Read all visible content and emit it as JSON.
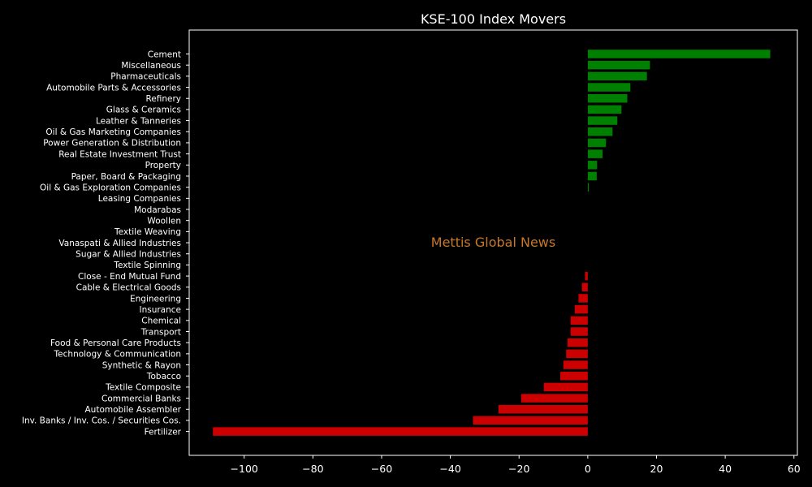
{
  "chart_data": {
    "type": "bar",
    "orientation": "horizontal",
    "title": "KSE-100 Index Movers",
    "watermark": "Mettis Global News",
    "xlabel": "",
    "ylabel": "",
    "xlim": [
      -116,
      61
    ],
    "xticks": [
      -100,
      -80,
      -60,
      -40,
      -20,
      0,
      20,
      40,
      60
    ],
    "xtick_labels": [
      "−100",
      "−80",
      "−60",
      "−40",
      "−20",
      "0",
      "20",
      "40",
      "60"
    ],
    "grid": false,
    "categories": [
      "Cement",
      "Miscellaneous",
      "Pharmaceuticals",
      "Automobile Parts & Accessories",
      "Refinery",
      "Glass & Ceramics",
      "Leather & Tanneries",
      "Oil & Gas Marketing Companies",
      "Power Generation & Distribution",
      "Real Estate Investment Trust",
      "Property",
      "Paper, Board & Packaging",
      "Oil & Gas Exploration Companies",
      "Leasing Companies",
      "Modarabas",
      "Woollen",
      "Textile Weaving",
      "Vanaspati & Allied Industries",
      "Sugar & Allied Industries",
      "Textile Spinning",
      "Close - End Mutual Fund",
      "Cable & Electrical Goods",
      "Engineering",
      "Insurance",
      "Chemical",
      "Transport",
      "Food & Personal Care Products",
      "Technology & Communication",
      "Synthetic & Rayon",
      "Tobacco",
      "Textile Composite",
      "Commercial Banks",
      "Automobile Assembler",
      "Inv. Banks / Inv. Cos. / Securities Cos.",
      "Fertilizer"
    ],
    "values": [
      53.1,
      18.1,
      17.2,
      12.4,
      11.5,
      9.8,
      8.6,
      7.2,
      5.3,
      4.3,
      2.7,
      2.6,
      0.3,
      0,
      0,
      0,
      0,
      0,
      0,
      0,
      -0.8,
      -1.7,
      -2.7,
      -3.8,
      -5.0,
      -5.0,
      -5.9,
      -6.3,
      -7.1,
      -8.0,
      -12.8,
      -19.4,
      -26.0,
      -33.4,
      -109.1
    ],
    "colors": {
      "positive": "#008000",
      "negative": "#cc0000",
      "background": "#000000",
      "axes": "#ffffff",
      "watermark": "#c8782a"
    }
  }
}
